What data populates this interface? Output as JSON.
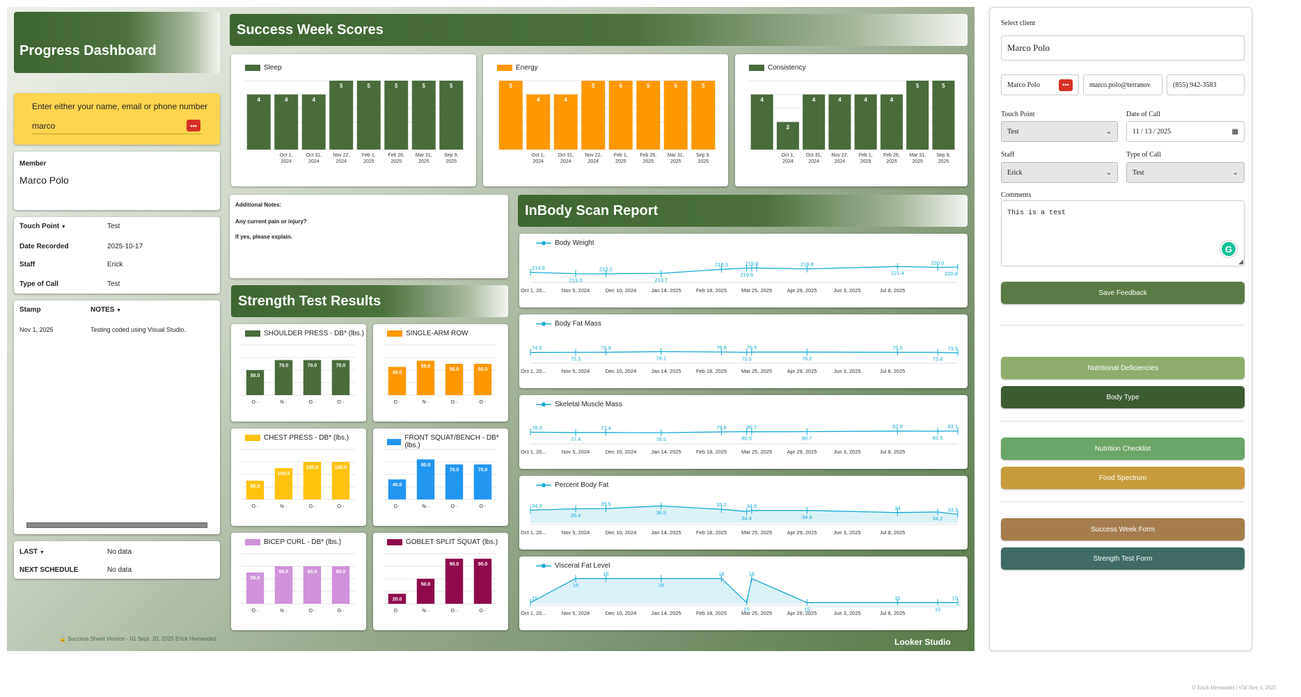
{
  "dashboard_title": "Progress Dashboard",
  "success_title": "Success Week Scores",
  "inbody_title": "InBody Scan Report",
  "strength_title": "Strength Test Results",
  "search": {
    "prompt": "Enter either your name, email or phone number",
    "value": "marco"
  },
  "member": {
    "label": "Member",
    "name": "Marco Polo"
  },
  "info": [
    {
      "label": "Touch Point",
      "value": "Test",
      "dropdown": true
    },
    {
      "label": "Date Recorded",
      "value": "2025-10-17"
    },
    {
      "label": "Staff",
      "value": "Erick"
    },
    {
      "label": "Type of Call",
      "value": "Test"
    }
  ],
  "notes_table": {
    "col1": "Stamp",
    "col2": "NOTES",
    "rows": [
      {
        "stamp": "Nov 1, 2025",
        "note": "Testing coded using Visual Studio."
      }
    ]
  },
  "last": {
    "label": "LAST",
    "value": "No data"
  },
  "next_schedule": {
    "label": "NEXT SCHEDULE",
    "value": "No data"
  },
  "footer_version": "Success Sheet Version - 01 Sept. 20, 2025 Erick Hernandez",
  "footer_version_icon": "lock-icon",
  "looker": "Looker Studio",
  "additional_notes": {
    "line1": "Additional Notes:",
    "line2": "Any current pain or injury?",
    "line3": "If yes, please explain."
  },
  "copyright": "© Erick Hernandez | v50 Nov 1, 2025",
  "colors": {
    "green": "#4a6b3c",
    "orange": "#ff9800",
    "line": "#14a9d6",
    "yellow": "#ffd54f"
  },
  "chart_data": [
    {
      "type": "bar",
      "title": "Sleep",
      "color": "#4a6b3c",
      "categories": [
        "",
        "Oct 1, 2024",
        "Oct 31, 2024",
        "Nov 22, 2024",
        "Feb 1, 2025",
        "Feb 26, 2025",
        "Mar 31, 2025",
        "Sep 9, 2025"
      ],
      "values": [
        4,
        4,
        4,
        5,
        5,
        5,
        5,
        5
      ],
      "ylim": [
        0,
        5
      ]
    },
    {
      "type": "bar",
      "title": "Energy",
      "color": "#ff9800",
      "categories": [
        "",
        "Oct 1, 2024",
        "Oct 31, 2024",
        "Nov 22, 2024",
        "Feb 1, 2025",
        "Feb 26, 2025",
        "Mar 31, 2025",
        "Sep 9, 2025"
      ],
      "values": [
        5,
        4,
        4,
        5,
        5,
        5,
        5,
        5
      ],
      "ylim": [
        0,
        5
      ]
    },
    {
      "type": "bar",
      "title": "Consistency",
      "color": "#4a6b3c",
      "categories": [
        "",
        "Oct 1, 2024",
        "Oct 31, 2024",
        "Nov 22, 2024",
        "Feb 1, 2025",
        "Feb 26, 2025",
        "Mar 31, 2025",
        "Sep 9, 2025"
      ],
      "values": [
        4,
        2,
        4,
        4,
        4,
        4,
        5,
        5
      ],
      "ylim": [
        0,
        5
      ]
    },
    {
      "type": "bar",
      "title": "SHOULDER PRESS - DB* (lbs.)",
      "color": "#4a6b3c",
      "categories": [
        "O··",
        "N··",
        "O··",
        "O··"
      ],
      "values": [
        50.0,
        70.0,
        70.0,
        70.0
      ],
      "ylim": [
        0,
        100
      ]
    },
    {
      "type": "bar",
      "title": "SINGLE-ARM ROW",
      "color": "#ff9800",
      "categories": [
        "O··",
        "N··",
        "O··",
        "O··"
      ],
      "values": [
        45.0,
        55.0,
        50.0,
        50.0
      ],
      "ylim": [
        0,
        80
      ]
    },
    {
      "type": "bar",
      "title": "CHEST PRESS - DB* (lbs.)",
      "color": "#ffc20e",
      "categories": [
        "O··",
        "N··",
        "O··",
        "O··"
      ],
      "values": [
        60.0,
        100.0,
        120.0,
        120.0
      ],
      "ylim": [
        0,
        160
      ]
    },
    {
      "type": "bar",
      "title": "FRONT SQUAT/BENCH - DB* (lbs.)",
      "color": "#2196f3",
      "categories": [
        "O··",
        "N··",
        "O··",
        "O··"
      ],
      "values": [
        40.0,
        80.0,
        70.0,
        70.0
      ],
      "ylim": [
        0,
        100
      ]
    },
    {
      "type": "bar",
      "title": "BICEP CURL - DB* (lbs.)",
      "color": "#ce93d8",
      "categories": [
        "O··",
        "N··",
        "O··",
        "O··"
      ],
      "values": [
        50.0,
        60.0,
        60.0,
        60.0
      ],
      "ylim": [
        0,
        80
      ]
    },
    {
      "type": "bar",
      "title": "GOBLET SPLIT SQUAT (lbs.)",
      "color": "#8e0b4b",
      "categories": [
        "O··",
        "N··",
        "O··",
        "O··"
      ],
      "values": [
        20.0,
        50.0,
        90.0,
        90.0
      ],
      "ylim": [
        0,
        100
      ]
    },
    {
      "type": "line",
      "title": "Body Weight",
      "color": "#14a9d6",
      "x_ticks": [
        "Oct 1, 20...",
        "Nov 5, 2024",
        "Dec 10, 2024",
        "Jan 14, 2025",
        "Feb 18, 2025",
        "Mar 25, 2025",
        "Apr 29, 2025",
        "Jun 3, 2025",
        "Jul 8, 2025"
      ],
      "x": [
        0,
        54,
        90,
        156,
        228,
        258,
        264,
        270,
        330,
        438,
        486,
        510
      ],
      "values": [
        214.9,
        213.3,
        213.2,
        213.7,
        218.3,
        219.6,
        219.8,
        219.8,
        218.8,
        221.4,
        220.5,
        220.8
      ],
      "labels": [
        "214.9",
        "213.3",
        "213.2",
        "213.7",
        "218.3",
        "219.6",
        "219.8",
        "",
        "218.8",
        "221.4",
        "220.5",
        "220.8"
      ],
      "ylim": [
        205,
        235
      ],
      "area": false
    },
    {
      "type": "line",
      "title": "Body Fat Mass",
      "color": "#14a9d6",
      "x_ticks": [
        "Oct 1, 20...",
        "Nov 5, 2024",
        "Dec 10, 2024",
        "Jan 14, 2025",
        "Feb 18, 2025",
        "Mar 25, 2025",
        "Apr 29, 2025",
        "Jun 3, 2025",
        "Jul 8, 2025"
      ],
      "x": [
        0,
        54,
        90,
        156,
        228,
        258,
        264,
        330,
        438,
        486,
        510
      ],
      "values": [
        74.9,
        75.5,
        75.9,
        78.1,
        76.8,
        75.5,
        76.5,
        76.2,
        75.5,
        75.4,
        73.5
      ],
      "labels": [
        "74.9",
        "75.5",
        "75.9",
        "78.1",
        "76.8",
        "75.5",
        "76.5",
        "76.2",
        "75.5",
        "75.4",
        "73.5"
      ],
      "ylim": [
        40,
        140
      ],
      "area": false
    },
    {
      "type": "line",
      "title": "Skeletal Muscle Mass",
      "color": "#14a9d6",
      "x": [
        0,
        54,
        90,
        156,
        228,
        258,
        264,
        330,
        438,
        486,
        510
      ],
      "x_ticks": [
        "Oct 1, 20...",
        "Nov 5, 2024",
        "Dec 10, 2024",
        "Jan 14, 2025",
        "Feb 18, 2025",
        "Mar 25, 2025",
        "Apr 29, 2025",
        "Jun 3, 2025",
        "Jul 8, 2025"
      ],
      "values": [
        78.3,
        77.4,
        77.4,
        76.5,
        79.8,
        80.9,
        80.2,
        80.7,
        82.9,
        82.5,
        83.1
      ],
      "labels": [
        "78.3",
        "77.4",
        "77.4",
        "76.5",
        "79.8",
        "80.9",
        "80.2",
        "80.7",
        "82.9",
        "82.5",
        "83.1"
      ],
      "ylim": [
        40,
        140
      ],
      "area": false
    },
    {
      "type": "line",
      "title": "Percent Body Fat",
      "color": "#14a9d6",
      "x": [
        0,
        54,
        90,
        156,
        228,
        258,
        264,
        330,
        438,
        486,
        510
      ],
      "x_ticks": [
        "Oct 1, 20...",
        "Nov 5, 2024",
        "Dec 10, 2024",
        "Jan 14, 2025",
        "Feb 18, 2025",
        "Mar 25, 2025",
        "Apr 29, 2025",
        "Jun 3, 2025",
        "Jul 8, 2025"
      ],
      "values": [
        34.9,
        35.4,
        35.5,
        36.5,
        35.2,
        34.4,
        34.8,
        34.8,
        34,
        34.2,
        33.3
      ],
      "labels": [
        "34.9",
        "35.4",
        "35.5",
        "36.5",
        "35.2",
        "34.4",
        "34.8",
        "34.8",
        "34",
        "34.2",
        "33.3"
      ],
      "ylim": [
        30,
        40
      ],
      "area": true
    },
    {
      "type": "line",
      "title": "Visceral Fat Level",
      "color": "#14a9d6",
      "x": [
        0,
        54,
        90,
        156,
        228,
        258,
        264,
        330,
        438,
        486,
        510
      ],
      "x_ticks": [
        "Oct 1, 20...",
        "Nov 5, 2024",
        "Dec 10, 2024",
        "Jan 14, 2025",
        "Feb 18, 2025",
        "Mar 25, 2025",
        "Apr 29, 2025",
        "Jun 3, 2025",
        "Jul 8, 2025"
      ],
      "values": [
        15,
        16,
        16,
        16,
        16,
        15,
        16,
        15,
        15,
        15,
        15
      ],
      "labels": [
        "15",
        "16",
        "16",
        "16",
        "16",
        "15",
        "16",
        "15",
        "15",
        "15",
        "15"
      ],
      "ylim": [
        14.95,
        16.05
      ],
      "area": true
    }
  ],
  "form": {
    "select_client_label": "Select client",
    "client_name": "Marco Polo",
    "client_short": "Marco Polo",
    "client_email": "marco.polo@terranov",
    "client_phone": "(855) 942-3583",
    "touch_point_label": "Touch Point",
    "touch_point_value": "Test",
    "date_label": "Date of Call",
    "date_value": "11 / 13 / 2025",
    "staff_label": "Staff",
    "staff_value": "Erick",
    "type_label": "Type of Call",
    "type_value": "Test",
    "comments_label": "Comments",
    "comments_value": "This is a test",
    "save_label": "Save Feedback",
    "buttons": [
      {
        "label": "Nutritional Deficiencies",
        "color": "#8fae6e"
      },
      {
        "label": "Body Type",
        "color": "#3e5c33"
      },
      {
        "label": "Nutrition Checklist",
        "color": "#6aa667"
      },
      {
        "label": "Food Spectrum",
        "color": "#c89b3c"
      },
      {
        "label": "Success Week Form",
        "color": "#a57d4d"
      },
      {
        "label": "Strength Test Form",
        "color": "#3f6b64"
      }
    ]
  }
}
